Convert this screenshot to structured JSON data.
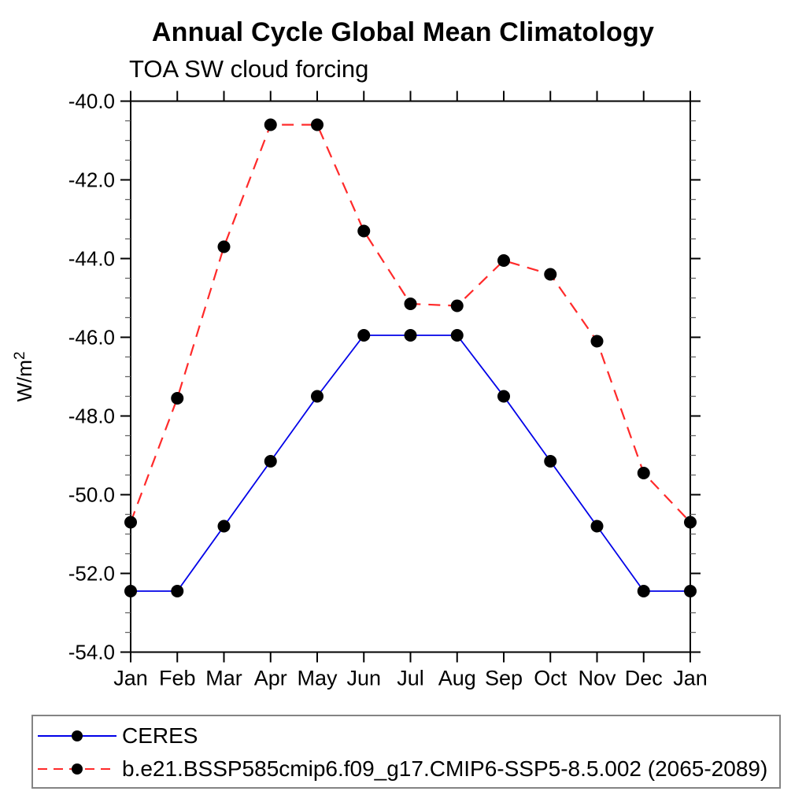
{
  "chart_data": {
    "type": "line",
    "title": "Annual Cycle Global Mean Climatology",
    "subtitle": "TOA SW cloud forcing",
    "ylabel": "W/m²",
    "xlabel": "",
    "categories": [
      "Jan",
      "Feb",
      "Mar",
      "Apr",
      "May",
      "Jun",
      "Jul",
      "Aug",
      "Sep",
      "Oct",
      "Nov",
      "Dec",
      "Jan"
    ],
    "ylim": [
      -54.0,
      -40.0
    ],
    "ytick_step": 2,
    "minor_step": 0.5,
    "ytick_labels": [
      "-40.0",
      "-42.0",
      "-44.0",
      "-46.0",
      "-48.0",
      "-50.0",
      "-52.0",
      "-54.0"
    ],
    "grid": false,
    "legend_position": "bottom-left-box",
    "axis_color": "#000000",
    "marker_color": "#000000",
    "series": [
      {
        "name": "CERES",
        "color": "#0000e8",
        "style": "solid",
        "values": [
          -52.45,
          -52.45,
          -50.8,
          -49.15,
          -47.5,
          -45.95,
          -45.95,
          -45.95,
          -47.5,
          -49.15,
          -50.8,
          -52.45,
          -52.45
        ]
      },
      {
        "name": "b.e21.BSSP585cmip6.f09_g17.CMIP6-SSP5-8.5.002 (2065-2089)",
        "color": "#ff2a2a",
        "style": "dashed",
        "values": [
          -50.7,
          -47.55,
          -43.7,
          -40.6,
          -40.6,
          -43.3,
          -45.15,
          -45.2,
          -44.05,
          -44.4,
          -46.1,
          -49.45,
          -50.7
        ]
      }
    ]
  }
}
